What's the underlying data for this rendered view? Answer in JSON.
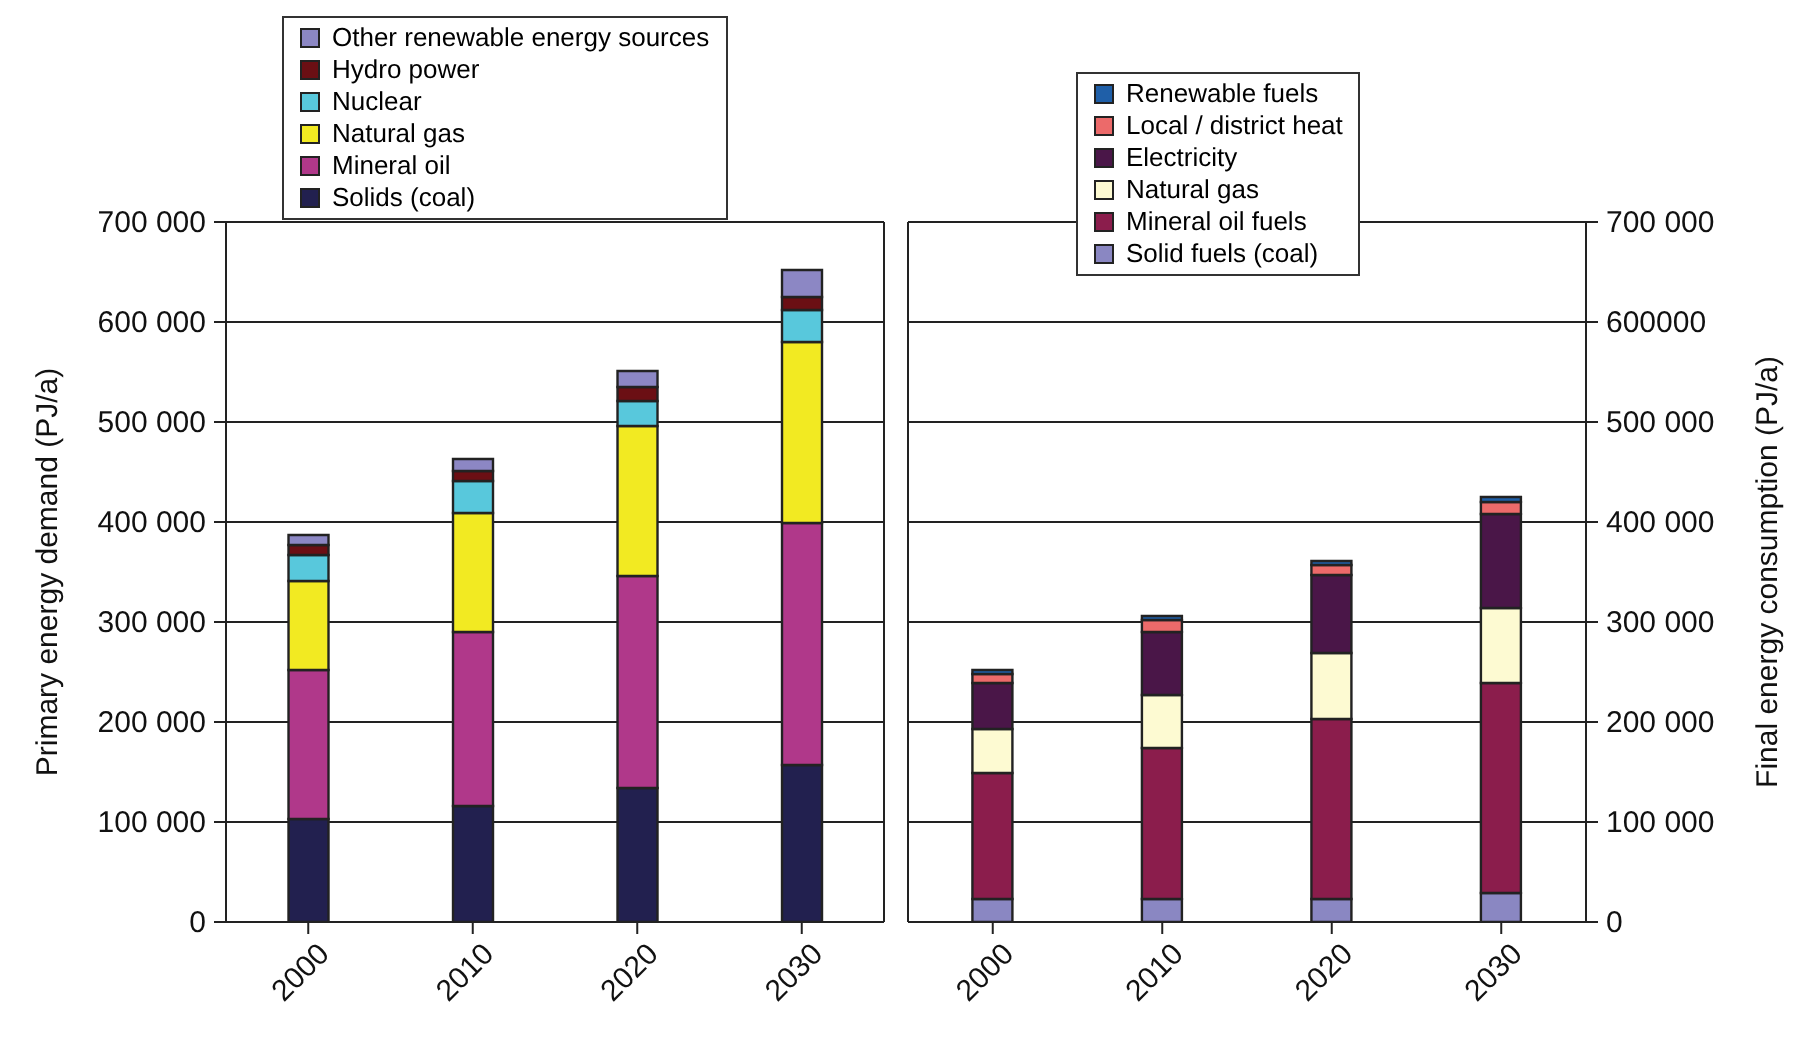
{
  "chart_data": [
    {
      "type": "bar",
      "stacked": true,
      "ylabel": "Primary energy demand (PJ/a)",
      "categories": [
        "2000",
        "2010",
        "2020",
        "2030"
      ],
      "ylim": [
        0,
        700000
      ],
      "yticks": [
        0,
        {
          "value": 100000,
          "label": "100 000"
        },
        {
          "value": 200000,
          "label": "200 000"
        },
        {
          "value": 300000,
          "label": "300 000"
        },
        {
          "value": 400000,
          "label": "400 000"
        },
        {
          "value": 500000,
          "label": "500 000"
        },
        {
          "value": 600000,
          "label": "600 000"
        },
        {
          "value": 700000,
          "label": "700 000"
        }
      ],
      "grid": "y",
      "legend": "top left",
      "series": [
        {
          "name": "Solids (coal)",
          "color": "#22204f",
          "values": [
            103000,
            116000,
            134000,
            157000
          ]
        },
        {
          "name": "Mineral oil",
          "color": "#b0388a",
          "values": [
            149000,
            174000,
            212000,
            242000
          ]
        },
        {
          "name": "Natural gas",
          "color": "#f2ea22",
          "values": [
            89000,
            119000,
            150000,
            181000
          ]
        },
        {
          "name": "Nuclear",
          "color": "#58c8dc",
          "values": [
            26000,
            32000,
            25000,
            32000
          ]
        },
        {
          "name": "Hydro power",
          "color": "#6b0f14",
          "values": [
            10000,
            10000,
            14000,
            13000
          ]
        },
        {
          "name": "Other renewable energy sources",
          "color": "#8c87c4",
          "values": [
            10000,
            12000,
            16000,
            27000
          ]
        }
      ]
    },
    {
      "type": "bar",
      "stacked": true,
      "y2label": "Final energy consumption (PJ/a)",
      "categories": [
        "2000",
        "2010",
        "2020",
        "2030"
      ],
      "y2lim": [
        0,
        700000
      ],
      "y2ticks": [
        0,
        {
          "value": 100000,
          "label": "100 000"
        },
        {
          "value": 200000,
          "label": "200 000"
        },
        {
          "value": 300000,
          "label": "300 000"
        },
        {
          "value": 400000,
          "label": "400 000"
        },
        {
          "value": 500000,
          "label": "500 000"
        },
        {
          "value": 600000,
          "label": "600000"
        },
        {
          "value": 700000,
          "label": "700 000"
        }
      ],
      "grid": "y",
      "legend": "top right",
      "series": [
        {
          "name": "Solid fuels (coal)",
          "color": "#8a87c2",
          "axis": "y2",
          "values": [
            23000,
            23000,
            23000,
            29000
          ]
        },
        {
          "name": "Mineral oil fuels",
          "color": "#8b1d4c",
          "axis": "y2",
          "values": [
            126000,
            151000,
            180000,
            210000
          ]
        },
        {
          "name": "Natural gas",
          "color": "#fdfad2",
          "axis": "y2",
          "values": [
            44000,
            53000,
            66000,
            75000
          ]
        },
        {
          "name": "Electricity",
          "color": "#4a1648",
          "axis": "y2",
          "values": [
            46000,
            63000,
            78000,
            94000
          ]
        },
        {
          "name": "Local / district heat",
          "color": "#ec6a6a",
          "axis": "y2",
          "values": [
            9000,
            12000,
            10000,
            12000
          ]
        },
        {
          "name": "Renewable fuels",
          "color": "#1f5fa8",
          "axis": "y2",
          "values": [
            4000,
            4000,
            4000,
            5000
          ]
        }
      ]
    }
  ]
}
